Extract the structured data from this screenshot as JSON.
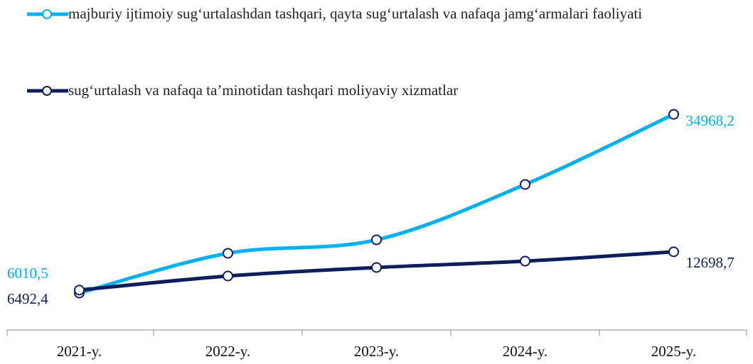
{
  "chart_data": {
    "type": "line",
    "categories": [
      "2021-y.",
      "2022-y.",
      "2023-y.",
      "2024-y.",
      "2025-y."
    ],
    "series": [
      {
        "name": "majburiy ijtimoiy sug‘urtalashdan tashqari, qayta sug‘urtalash va nafaqa jamg‘armalari faoliyati",
        "color": "#00b0f0",
        "values": [
          6010.5,
          12450,
          14630,
          23600,
          34968.2
        ],
        "value_labels": [
          "6010,5",
          null,
          null,
          null,
          "34968,2"
        ]
      },
      {
        "name": "sug‘urtalash va nafaqa ta’minotidan tashqari moliyaviy xizmatlar",
        "color": "#0c1f5a",
        "values": [
          6492.4,
          8770,
          10150,
          11180,
          12698.7
        ],
        "value_labels": [
          "6492,4",
          null,
          null,
          null,
          "12698,7"
        ]
      }
    ],
    "ylim": [
      0,
      40000
    ],
    "legend": "top"
  }
}
